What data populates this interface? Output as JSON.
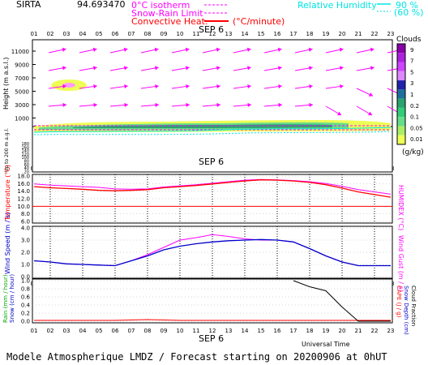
{
  "header": {
    "site": "SIRTA",
    "coords": "94.693470",
    "legend_isotherm": "0°C isotherm",
    "legend_snowrain": "Snow-Rain Limit",
    "legend_convective": "Convective Heat.",
    "convective_unit": "(°C/minute)",
    "rh_label": "Relative Humidity",
    "rh_90": "90 %",
    "rh_60": "(60 %)",
    "clouds_label": "Clouds",
    "clouds_unit": "(g/kg)"
  },
  "date_label": "SEP  6",
  "hours": [
    "01",
    "02",
    "03",
    "04",
    "05",
    "06",
    "07",
    "08",
    "09",
    "10",
    "11",
    "12",
    "13",
    "14",
    "15",
    "16",
    "17",
    "18",
    "19",
    "20",
    "21",
    "22",
    "23"
  ],
  "footer": {
    "universal_time": "Universal Time",
    "model_line": "Modele Atmospherique LMDZ / Forecast starting on 20200906 at 0hUT"
  },
  "colors": {
    "magenta": "#ff00ff",
    "red": "#ff0000",
    "cyan": "#00e5e5",
    "blue": "#0000cc",
    "green": "#00aa00"
  },
  "chart_data": [
    {
      "type": "heatmap",
      "name": "height-panel",
      "ylabel_main": "Height (m a.s.l.)",
      "ylabel_low": "Up to 200 m a.g.l.",
      "yticks_upper": [
        "11000",
        "9000",
        "7000",
        "5000",
        "3000",
        "1000"
      ],
      "yticks_lower": [
        "180",
        "160",
        "140",
        "120",
        "100",
        "80",
        "60",
        "40",
        "20"
      ],
      "colorbar": {
        "label": "Clouds",
        "unit": "(g/kg)",
        "ticks": [
          "9",
          "7",
          "5",
          "3",
          "1",
          "0.2",
          "0.1",
          "0.05",
          "0.01"
        ],
        "colors": [
          "#8800aa",
          "#aa22dd",
          "#cc44ff",
          "#dd88ff",
          "#2222aa",
          "#1f6f9a",
          "#2aa36f",
          "#33cc77",
          "#66dd88",
          "#aaee66",
          "#eeff55"
        ]
      }
    },
    {
      "type": "line",
      "name": "temperature-panel",
      "ylabel_left": "Temperature (°C)",
      "ylabel_right": "HUMIDEX (°C)",
      "yticks": [
        "18.0",
        "16.0",
        "14.0",
        "12.0",
        "10.0",
        "8.0",
        "6.0"
      ],
      "ylim": [
        6,
        18
      ],
      "threshold": 10,
      "series": [
        {
          "name": "Temperature",
          "color": "#ff0000",
          "values": [
            15.2,
            14.9,
            14.7,
            14.5,
            14.2,
            14.1,
            14.2,
            14.4,
            14.9,
            15.2,
            15.5,
            15.9,
            16.3,
            16.7,
            17.0,
            16.9,
            16.7,
            16.3,
            15.7,
            14.8,
            13.8,
            13.1,
            12.4
          ]
        },
        {
          "name": "HUMIDEX",
          "color": "#ff00ff",
          "values": [
            15.9,
            15.6,
            15.4,
            15.2,
            15.0,
            14.6,
            14.5,
            14.6,
            15.1,
            15.4,
            15.7,
            16.1,
            16.5,
            16.9,
            17.1,
            17.0,
            16.8,
            16.5,
            16.0,
            15.3,
            14.4,
            13.8,
            13.2
          ]
        }
      ]
    },
    {
      "type": "line",
      "name": "wind-panel",
      "ylabel_left": "Wind Speed (m / s)",
      "ylabel_right": "Wind Gust (m / s)",
      "yticks": [
        "4.0",
        "3.0",
        "2.0",
        "1.0",
        "0.0"
      ],
      "ylim": [
        0,
        4
      ],
      "series": [
        {
          "name": "Wind Speed",
          "color": "#0000cc",
          "values": [
            1.3,
            1.2,
            1.05,
            1.0,
            0.95,
            0.9,
            1.3,
            1.7,
            2.2,
            2.5,
            2.7,
            2.85,
            2.95,
            3.0,
            3.05,
            3.0,
            2.85,
            2.3,
            1.7,
            1.2,
            0.9,
            0.9,
            0.9
          ]
        },
        {
          "name": "Wind Gust",
          "color": "#ff00ff",
          "values": [
            1.3,
            1.2,
            1.05,
            1.0,
            0.95,
            0.9,
            1.3,
            1.8,
            2.4,
            3.0,
            3.2,
            3.45,
            3.3,
            3.1,
            3.0,
            3.0,
            2.85,
            2.3,
            1.7,
            1.2,
            0.9,
            0.9,
            0.9
          ]
        }
      ]
    },
    {
      "type": "line",
      "name": "precip-panel",
      "ylabel_left_1": "Rain (mm / hour)",
      "ylabel_left_2": "Snow (cm / hour)",
      "ylabel_right_1": "CAPE (J / g)",
      "ylabel_right_2": "Snow Depth (cm)",
      "ylabel_right_3": "Cloud Fraction",
      "yticks": [
        "1.0",
        "0.8",
        "0.6",
        "0.4",
        "0.2",
        "0.0"
      ],
      "ylim": [
        0,
        1
      ],
      "series": [
        {
          "name": "Rain",
          "color": "#ff0000",
          "values": [
            0.02,
            0.02,
            0.02,
            0.02,
            0.02,
            0.02,
            0.03,
            0.04,
            0.03,
            0.02,
            0.02,
            0.02,
            0.02,
            0.02,
            0.02,
            0.02,
            0.02,
            0.02,
            0.02,
            0.02,
            0.02,
            0.02,
            0.02
          ]
        },
        {
          "name": "Cloud Fraction",
          "color": "#000000",
          "values": [
            null,
            null,
            null,
            null,
            null,
            null,
            null,
            null,
            null,
            null,
            null,
            null,
            null,
            null,
            null,
            null,
            1.0,
            0.85,
            0.75,
            0.35,
            0.0,
            0.0,
            0.0
          ]
        }
      ]
    }
  ]
}
